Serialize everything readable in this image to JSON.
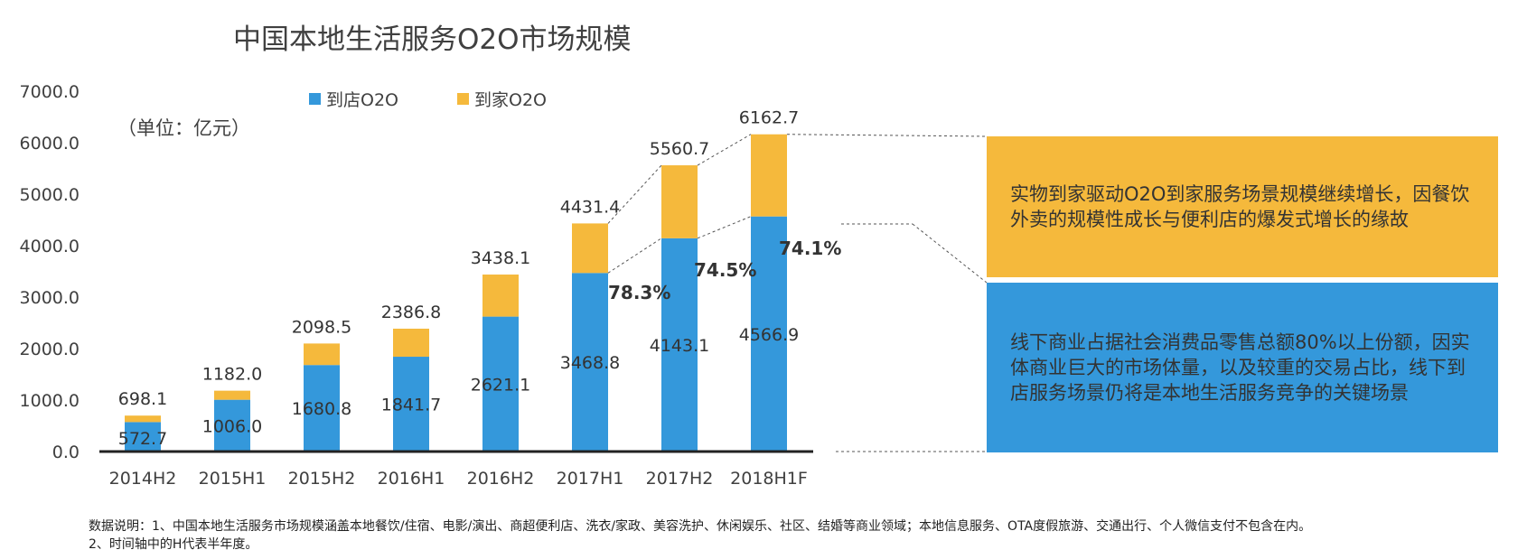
{
  "colors": {
    "store": "#3498db",
    "home": "#f5b93c",
    "axis": "#222222",
    "text": "#333333"
  },
  "unit_note": "（单位：亿元）",
  "callouts": {
    "top_text": "实物到家驱动O2O到家服务场景规模继续增长，因餐饮外卖的规模性成长与便利店的爆发式增长的缘故",
    "bottom_text": "线下商业占据社会消费品零售总额80%以上份额，因实体商业巨大的市场体量，以及较重的交易占比，线下到店服务场景仍将是本地生活服务竞争的关键场景"
  },
  "footnote": {
    "line1": "数据说明：1、中国本地生活服务市场规模涵盖本地餐饮/住宿、电影/演出、商超便利店、洗衣/家政、美容洗护、休闲娱乐、社区、结婚等商业领域；本地信息服务、OTA度假旅游、交通出行、个人微信支付不包含在内。",
    "line2": "2、时间轴中的H代表半年度。"
  },
  "chart_data": {
    "type": "bar",
    "stacked": true,
    "title": "中国本地生活服务O2O市场规模",
    "categories": [
      "2014H2",
      "2015H1",
      "2015H2",
      "2016H1",
      "2016H2",
      "2017H1",
      "2017H2",
      "2018H1F"
    ],
    "series": [
      {
        "name": "到店O2O",
        "values": [
          572.7,
          1006.0,
          1680.8,
          1841.7,
          2621.1,
          3468.8,
          4143.1,
          4566.9
        ]
      },
      {
        "name": "到家O2O",
        "values": [
          125.4,
          176.0,
          417.7,
          545.1,
          817.0,
          962.6,
          1417.6,
          1595.8
        ]
      }
    ],
    "totals": [
      698.1,
      1182.0,
      2098.5,
      2386.8,
      3438.1,
      4431.4,
      5560.7,
      6162.7
    ],
    "store_labels": [
      "572.7",
      "1006.0",
      "1680.8",
      "1841.7",
      "2621.1",
      "3468.8",
      "4143.1",
      "4566.9"
    ],
    "total_labels": [
      "698.1",
      "1182.0",
      "2098.5",
      "2386.8",
      "3438.1",
      "4431.4",
      "5560.7",
      "6162.7"
    ],
    "share_annotations": [
      {
        "category": "2017H1",
        "text": "78.3%"
      },
      {
        "category": "2017H2",
        "text": "74.5%"
      },
      {
        "category": "2018H1F",
        "text": "74.1%"
      }
    ],
    "yticks": [
      "0.0",
      "1000.0",
      "2000.0",
      "3000.0",
      "4000.0",
      "5000.0",
      "6000.0",
      "7000.0"
    ],
    "ylim": [
      0,
      7000
    ],
    "legend_position": "top",
    "grid": false
  }
}
